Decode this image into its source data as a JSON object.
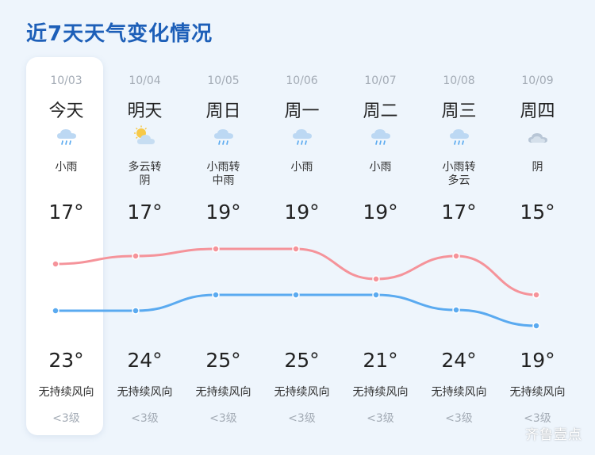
{
  "title": "近7天天气变化情况",
  "watermark": "齐鲁壹点",
  "colors": {
    "high_line": "#f5939a",
    "low_line": "#5aaaf0",
    "title": "#1d5fb8"
  },
  "days": [
    {
      "date": "10/03",
      "name": "今天",
      "icon": "rain-cloud-icon",
      "cond1": "小雨",
      "cond2": "",
      "high": "17°",
      "low": "23°",
      "wind": "无持续风向",
      "level": "<3级"
    },
    {
      "date": "10/04",
      "name": "明天",
      "icon": "partly-cloudy-icon",
      "cond1": "多云转",
      "cond2": "阴",
      "high": "17°",
      "low": "24°",
      "wind": "无持续风向",
      "level": "<3级"
    },
    {
      "date": "10/05",
      "name": "周日",
      "icon": "rain-cloud-icon",
      "cond1": "小雨转",
      "cond2": "中雨",
      "high": "19°",
      "low": "25°",
      "wind": "无持续风向",
      "level": "<3级"
    },
    {
      "date": "10/06",
      "name": "周一",
      "icon": "rain-cloud-icon",
      "cond1": "小雨",
      "cond2": "",
      "high": "19°",
      "low": "25°",
      "wind": "无持续风向",
      "level": "<3级"
    },
    {
      "date": "10/07",
      "name": "周二",
      "icon": "rain-cloud-icon",
      "cond1": "小雨",
      "cond2": "",
      "high": "19°",
      "low": "21°",
      "wind": "无持续风向",
      "level": "<3级"
    },
    {
      "date": "10/08",
      "name": "周三",
      "icon": "rain-cloud-icon",
      "cond1": "小雨转",
      "cond2": "多云",
      "high": "17°",
      "low": "24°",
      "wind": "无持续风向",
      "level": "<3级"
    },
    {
      "date": "10/09",
      "name": "周四",
      "icon": "overcast-cloud-icon",
      "cond1": "阴",
      "cond2": "",
      "high": "15°",
      "low": "19°",
      "wind": "无持续风向",
      "level": "<3级"
    }
  ],
  "chart_data": {
    "type": "line",
    "categories": [
      "10/03",
      "10/04",
      "10/05",
      "10/06",
      "10/07",
      "10/08",
      "10/09"
    ],
    "series": [
      {
        "values": [
          17,
          17,
          19,
          19,
          19,
          17,
          15
        ]
      },
      {
        "values": [
          23,
          24,
          25,
          25,
          21,
          24,
          19
        ]
      }
    ]
  }
}
